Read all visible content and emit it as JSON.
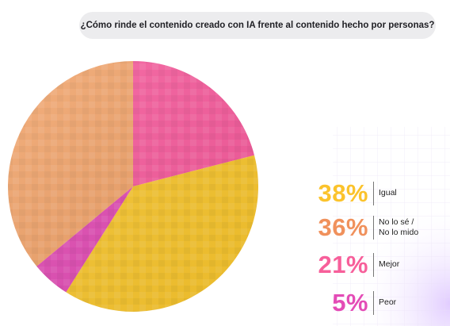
{
  "question": "¿Cómo rinde el contenido creado con IA frente al contenido hecho por personas?",
  "colors": {
    "igual": "#fbc82e",
    "no_lo_se": "#f08a5a",
    "mejor": "#f9629c",
    "peor": "#e64cb4",
    "accent_purple": "#b98cff"
  },
  "chart_data": {
    "type": "pie",
    "title": "¿Cómo rinde el contenido creado con IA frente al contenido hecho por personas?",
    "slices": [
      {
        "label": "Mejor",
        "value": 21,
        "color": "#fa5c9e"
      },
      {
        "label": "Igual",
        "value": 38,
        "color": "#fbc82e"
      },
      {
        "label": "Peor",
        "value": 5,
        "color": "#e44cb6"
      },
      {
        "label": "No lo sé / No lo mido",
        "value": 36,
        "color": "#f3a46a"
      }
    ],
    "legend": [
      {
        "pct": "38%",
        "label": "Igual",
        "color": "#fbc32c"
      },
      {
        "pct": "36%",
        "label": "No lo sé /\nNo lo mido",
        "color": "#f0915c"
      },
      {
        "pct": "21%",
        "label": "Mejor",
        "color": "#f75f9a"
      },
      {
        "pct": "5%",
        "label": "Peor",
        "color": "#e44cb6"
      }
    ],
    "legend_placement": "right"
  }
}
